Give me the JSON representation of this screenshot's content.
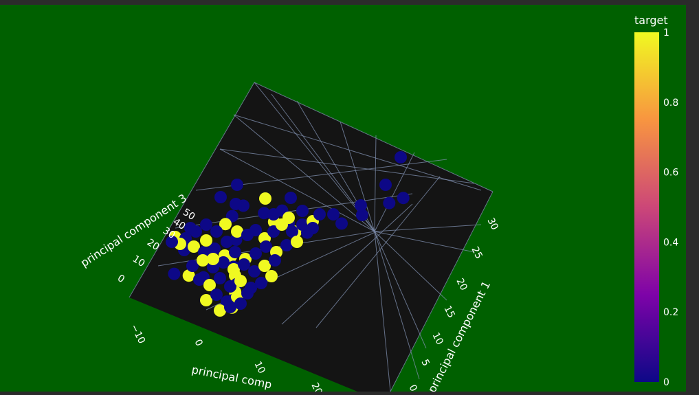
{
  "chart_data": {
    "type": "scatter",
    "projection": "3d",
    "background_color": "#006000",
    "scene_bg": "#141414",
    "grid_color": "#8090b0",
    "axes": {
      "x": {
        "title": "principal component 1",
        "ticks": [
          "0",
          "5",
          "10",
          "15",
          "20",
          "25",
          "30"
        ]
      },
      "y": {
        "title": "principal comp",
        "ticks": [
          "−10",
          "0",
          "10",
          "20"
        ]
      },
      "z": {
        "title": "principal component 3",
        "ticks": [
          "0",
          "10",
          "20",
          "30",
          "40",
          "50"
        ]
      }
    },
    "colorbar": {
      "title": "target",
      "ticks": [
        "1",
        "0.8",
        "0.6",
        "0.4",
        "0.2",
        "0"
      ],
      "range": [
        0,
        1
      ],
      "colorscale": [
        "#0d0887",
        "#7e03a8",
        "#cc4778",
        "#f89540",
        "#f0f921"
      ]
    },
    "series": [
      {
        "values_description": "target",
        "points": [
          {
            "pc1": 30,
            "pc2": -3,
            "pc3": 2,
            "target": 0
          },
          {
            "pc1": 28,
            "pc2": -3,
            "pc3": 3,
            "target": 0
          },
          {
            "pc1": 24,
            "pc2": -3,
            "pc3": 4,
            "target": 0
          },
          {
            "pc1": 21,
            "pc2": -3,
            "pc3": 5,
            "target": 0
          },
          {
            "pc1": 16,
            "pc2": -7,
            "pc3": 20,
            "target": 0
          },
          {
            "pc1": 14,
            "pc2": -8,
            "pc3": 22,
            "target": 0
          },
          {
            "pc1": 14,
            "pc2": -6,
            "pc3": 18,
            "target": 1
          },
          {
            "pc1": 15,
            "pc2": -4,
            "pc3": 16,
            "target": 0
          },
          {
            "pc1": 15,
            "pc2": -3,
            "pc3": 12,
            "target": 1
          },
          {
            "pc1": 16,
            "pc2": -2,
            "pc3": 10,
            "target": 0
          },
          {
            "pc1": 12,
            "pc2": -8,
            "pc3": 30,
            "target": 0
          },
          {
            "pc1": 10,
            "pc2": -8,
            "pc3": 28,
            "target": 0
          },
          {
            "pc1": 9,
            "pc2": -9,
            "pc3": 25,
            "target": 1
          },
          {
            "pc1": 8,
            "pc2": -5,
            "pc3": 20,
            "target": 0
          },
          {
            "pc1": 6,
            "pc2": -4,
            "pc3": 15,
            "target": 1
          },
          {
            "pc1": 5,
            "pc2": -2,
            "pc3": 12,
            "target": 0
          },
          {
            "pc1": 4,
            "pc2": 0,
            "pc3": 10,
            "target": 1
          },
          {
            "pc1": 3,
            "pc2": 2,
            "pc3": 8,
            "target": 0
          },
          {
            "pc1": 2,
            "pc2": 3,
            "pc3": 6,
            "target": 1
          },
          {
            "pc1": 1,
            "pc2": 4,
            "pc3": 4,
            "target": 0
          },
          {
            "pc1": 0,
            "pc2": 5,
            "pc3": 2,
            "target": 1
          },
          {
            "pc1": 2,
            "pc2": -6,
            "pc3": 10,
            "target": 0
          },
          {
            "pc1": 1,
            "pc2": -8,
            "pc3": 12,
            "target": 1
          },
          {
            "pc1": 0,
            "pc2": -10,
            "pc3": 14,
            "target": 0
          }
        ]
      }
    ]
  }
}
